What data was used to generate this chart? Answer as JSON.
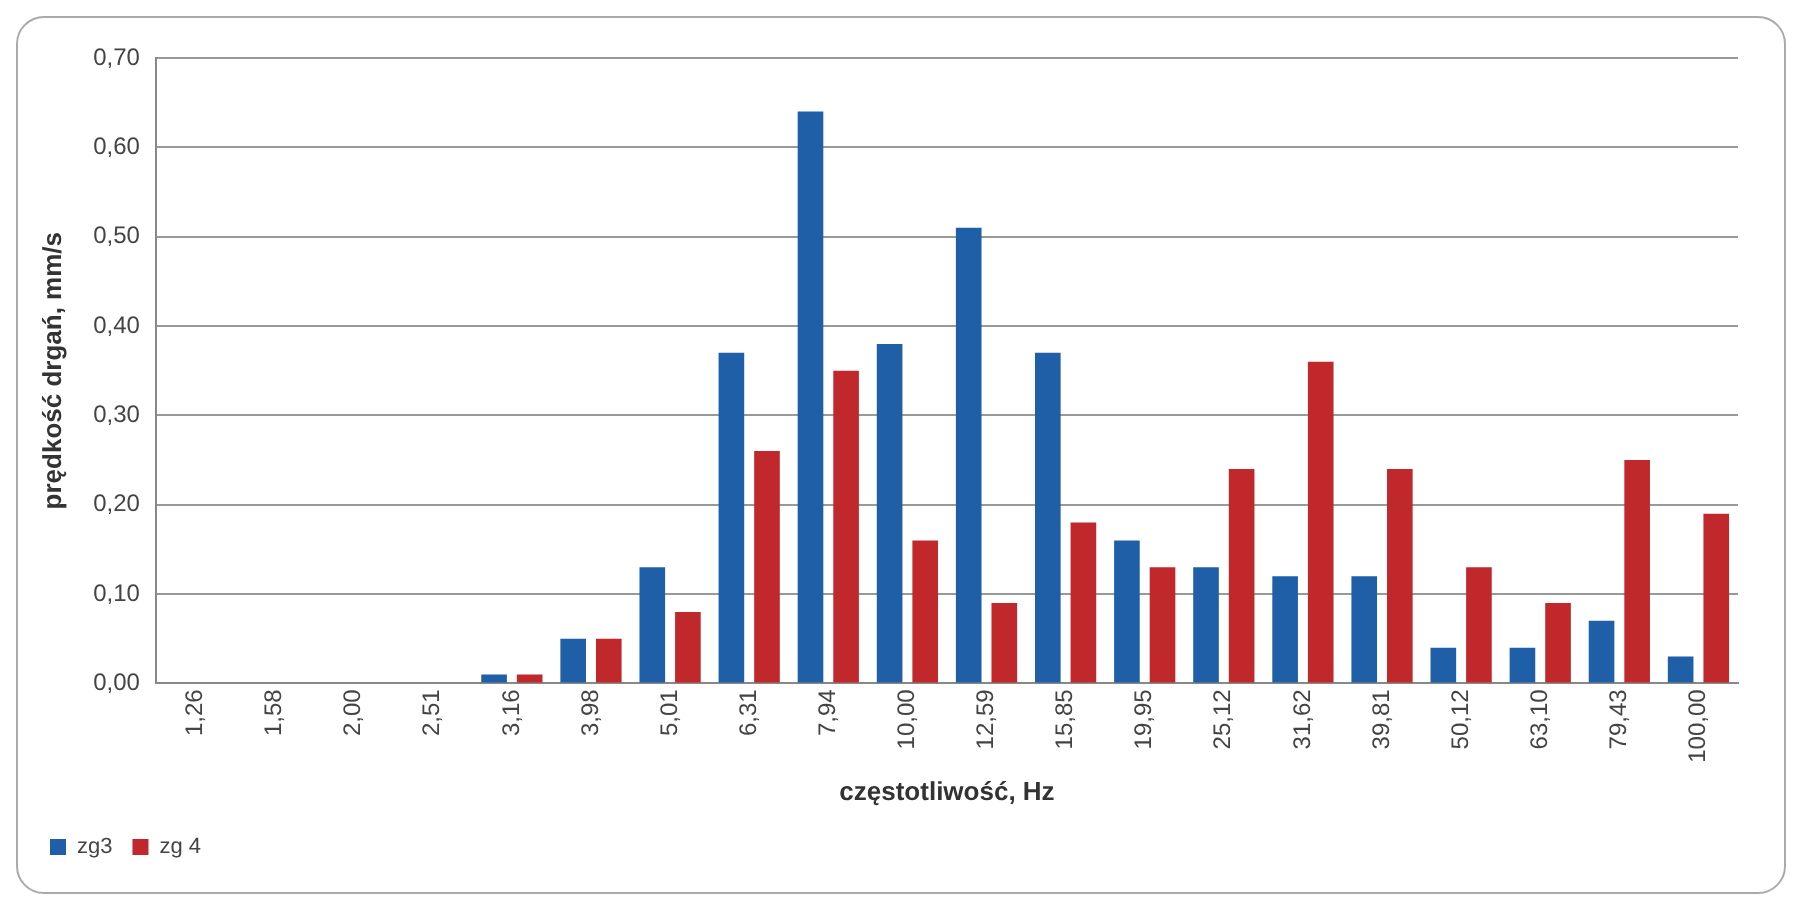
{
  "chart_data": {
    "type": "bar",
    "xlabel": "częstotliwość, Hz",
    "ylabel": "prędkość drgań, mm/s",
    "categories": [
      "1,26",
      "1,58",
      "2,00",
      "2,51",
      "3,16",
      "3,98",
      "5,01",
      "6,31",
      "7,94",
      "10,00",
      "12,59",
      "15,85",
      "19,95",
      "25,12",
      "31,62",
      "39,81",
      "50,12",
      "63,10",
      "79,43",
      "100,00"
    ],
    "series": [
      {
        "name": "zg3",
        "color": "#1f5fa8",
        "values": [
          0,
          0,
          0,
          0,
          0.01,
          0.05,
          0.13,
          0.37,
          0.64,
          0.38,
          0.51,
          0.37,
          0.16,
          0.13,
          0.12,
          0.12,
          0.04,
          0.04,
          0.07,
          0.03
        ]
      },
      {
        "name": "zg 4",
        "color": "#c0282c",
        "values": [
          0,
          0,
          0,
          0,
          0.01,
          0.05,
          0.08,
          0.26,
          0.35,
          0.16,
          0.09,
          0.18,
          0.13,
          0.24,
          0.36,
          0.24,
          0.13,
          0.09,
          0.25,
          0.19
        ]
      }
    ],
    "ylim": [
      0,
      0.7
    ],
    "yticks": [
      {
        "value": 0,
        "label": "0,00"
      },
      {
        "value": 0.1,
        "label": "0,10"
      },
      {
        "value": 0.2,
        "label": "0,20"
      },
      {
        "value": 0.3,
        "label": "0,30"
      },
      {
        "value": 0.4,
        "label": "0,40"
      },
      {
        "value": 0.5,
        "label": "0,50"
      },
      {
        "value": 0.6,
        "label": "0,60"
      },
      {
        "value": 0.7,
        "label": "0,70"
      }
    ],
    "grid": "y",
    "legend": "bottom left"
  }
}
